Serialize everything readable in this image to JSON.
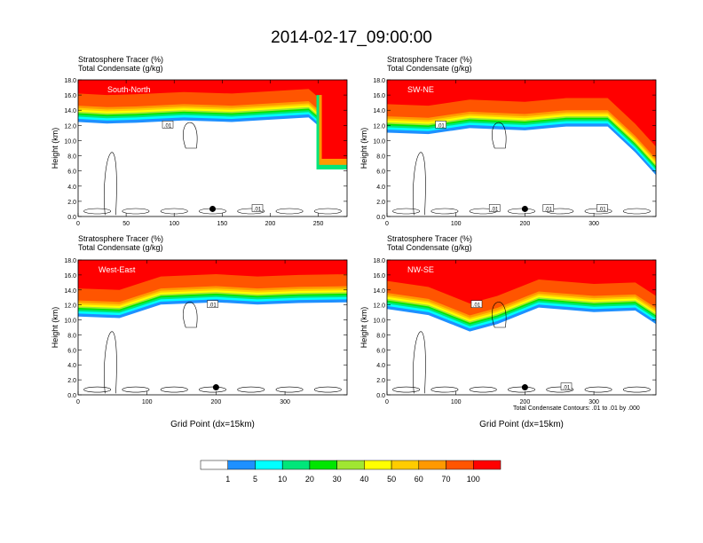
{
  "title": "2014-02-17_09:00:00",
  "panel_header": {
    "line1": "Stratosphere Tracer   (%)",
    "line2": "Total Condensate   (g/kg)"
  },
  "contour_note": "Total Condensate Contours: .01 to .01 by .000",
  "colors": [
    "#ffffff",
    "#1e90ff",
    "#00ffff",
    "#00e67a",
    "#00e600",
    "#a0e632",
    "#ffff00",
    "#ffcc00",
    "#ff9900",
    "#ff5500",
    "#ff0000"
  ],
  "colorbar_labels": [
    "1",
    "5",
    "10",
    "20",
    "30",
    "40",
    "50",
    "60",
    "70",
    "100"
  ],
  "chart_data": [
    {
      "type": "heatmap",
      "label": "South-North",
      "ylabel": "Height (km)",
      "xlabel": "",
      "xlim": [
        0,
        280
      ],
      "ylim": [
        0,
        18
      ],
      "xticks": [
        0,
        50,
        100,
        150,
        200,
        250
      ],
      "yticks": [
        "0.0",
        "2.0",
        "4.0",
        "6.0",
        "8.0",
        "10.0",
        "12.0",
        "14.0",
        "16.0",
        "18.0"
      ],
      "contour_labels": [
        ".01",
        ".01"
      ]
    },
    {
      "type": "heatmap",
      "label": "SW-NE",
      "ylabel": "Height (km)",
      "xlabel": "",
      "xlim": [
        0,
        390
      ],
      "ylim": [
        0,
        18
      ],
      "xticks": [
        0,
        100,
        200,
        300
      ],
      "yticks": [
        "0.0",
        "2.0",
        "4.0",
        "6.0",
        "8.0",
        "10.0",
        "12.0",
        "14.0",
        "16.0",
        "18.0"
      ],
      "contour_labels": [
        ".01",
        ".01",
        ".01",
        ".01"
      ]
    },
    {
      "type": "heatmap",
      "label": "West-East",
      "ylabel": "Height (km)",
      "xlabel": "Grid Point (dx=15km)",
      "xlim": [
        0,
        390
      ],
      "ylim": [
        0,
        18
      ],
      "xticks": [
        0,
        100,
        200,
        300
      ],
      "yticks": [
        "0.0",
        "2.0",
        "4.0",
        "6.0",
        "8.0",
        "10.0",
        "12.0",
        "14.0",
        "16.0",
        "18.0"
      ],
      "contour_labels": [
        ".01"
      ]
    },
    {
      "type": "heatmap",
      "label": "NW-SE",
      "ylabel": "Height (km)",
      "xlabel": "Grid Point (dx=15km)",
      "xlim": [
        0,
        390
      ],
      "ylim": [
        0,
        18
      ],
      "xticks": [
        0,
        100,
        200,
        300
      ],
      "yticks": [
        "0.0",
        "2.0",
        "4.0",
        "6.0",
        "8.0",
        "10.0",
        "12.0",
        "14.0",
        "16.0",
        "18.0"
      ],
      "contour_labels": [
        ".01",
        ".01"
      ]
    }
  ]
}
